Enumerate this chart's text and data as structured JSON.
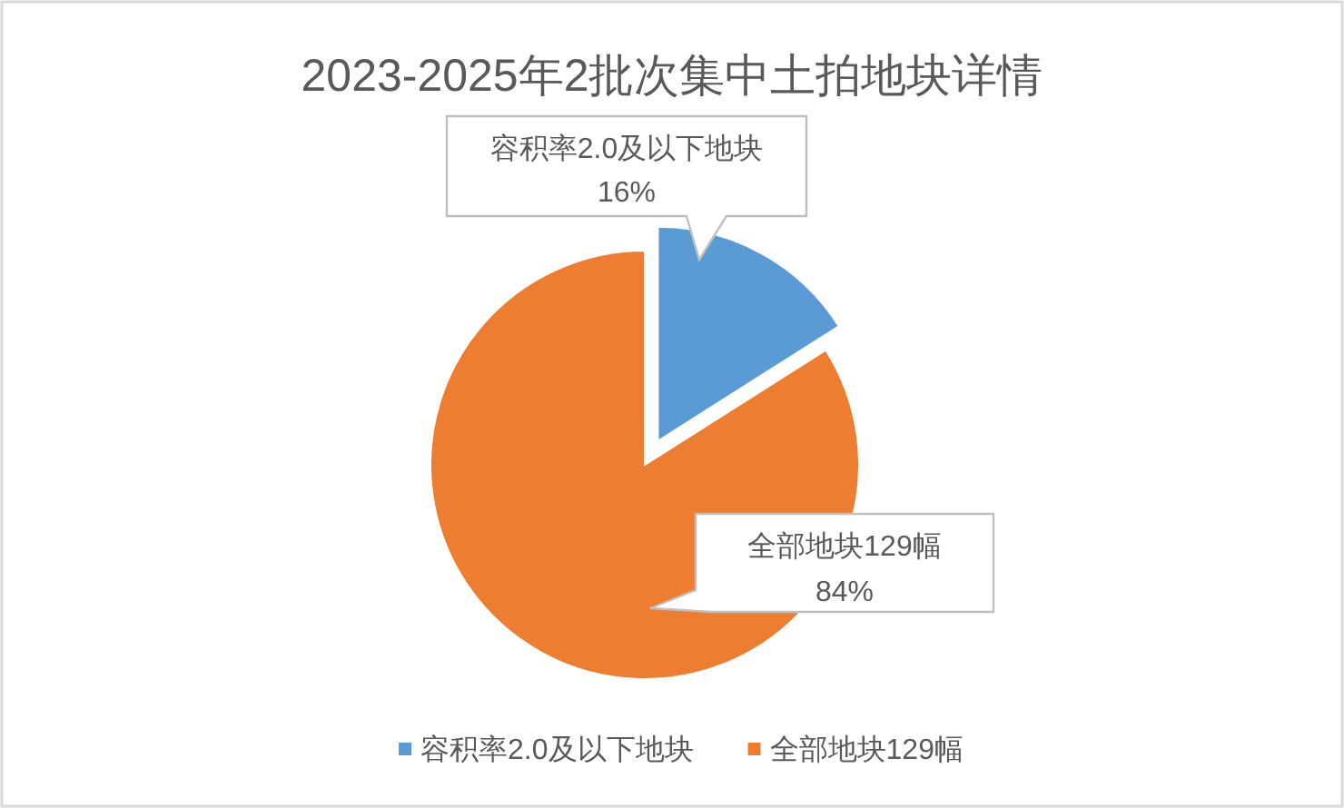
{
  "chart_data": {
    "type": "pie",
    "title": "2023-2025年2批次集中土拍地块详情",
    "categories": [
      "容积率2.0及以下地块",
      "全部地块129幅"
    ],
    "values": [
      16,
      84
    ],
    "colors": [
      "#5b9bd5",
      "#ed7d31"
    ],
    "value_labels": [
      "16%",
      "84%"
    ],
    "legend": "bottom"
  }
}
